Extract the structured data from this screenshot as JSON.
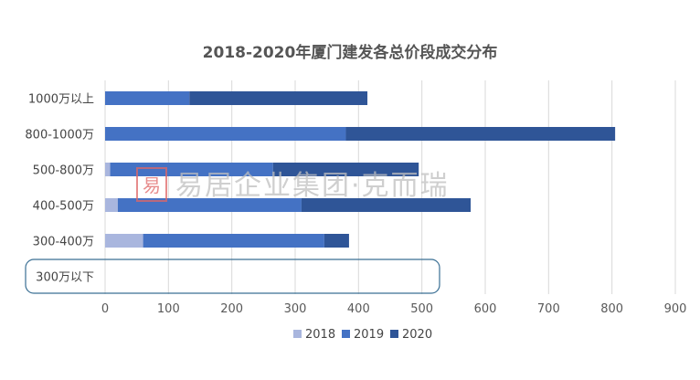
{
  "chart_data": {
    "type": "bar",
    "orientation": "horizontal",
    "stacked": true,
    "title": "2018-2020年厦门建发各总价段成交分布",
    "categories": [
      "1000万以上",
      "800-1000万",
      "500-800万",
      "400-500万",
      "300-400万",
      "300万以下"
    ],
    "series": [
      {
        "name": "2018",
        "values": [
          0,
          0,
          8,
          20,
          60,
          0
        ]
      },
      {
        "name": "2019",
        "values": [
          133,
          380,
          257,
          290,
          286,
          0
        ]
      },
      {
        "name": "2020",
        "values": [
          281,
          425,
          230,
          267,
          39,
          0
        ]
      }
    ],
    "xlim": [
      0,
      900
    ],
    "xticks": [
      0,
      100,
      200,
      300,
      400,
      500,
      600,
      700,
      800,
      900
    ],
    "grid": "vertical",
    "legend": "bottom",
    "highlighted_category": "300万以下",
    "colors": {
      "2018": "#A9B6DE",
      "2019": "#4472C4",
      "2020": "#2F5597",
      "grid": "#D9D9D9",
      "highlight": "#3A6F94",
      "watermark_logo": "#E06666"
    },
    "watermark": "易居企业集团·克而瑞"
  }
}
